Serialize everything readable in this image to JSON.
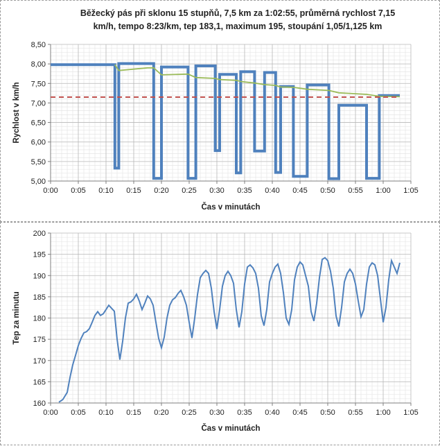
{
  "chart_data": [
    {
      "type": "line",
      "title_lines": [
        "Běžecký pás při sklonu 15 stupňů, 7,5 km za 1:02:55, průměrná rychlost 7,15",
        "km/h, tempo 8:23/km, tep 183,1, maximum 195, stoupání 1,05/1,125 km"
      ],
      "xlabel": "Čas v minutách",
      "ylabel": "Rychlost v km/h",
      "xlim": [
        0,
        65
      ],
      "ylim": [
        5.0,
        8.5
      ],
      "x_ticks": [
        "0:00",
        "0:05",
        "0:10",
        "0:15",
        "0:20",
        "0:25",
        "0:30",
        "0:35",
        "0:40",
        "0:45",
        "0:50",
        "0:55",
        "1:00",
        "1:05"
      ],
      "y_ticks": [
        "5,00",
        "5,50",
        "6,00",
        "6,50",
        "7,00",
        "7,50",
        "8,00",
        "8,50"
      ],
      "grid": true,
      "series": [
        {
          "color": "#4f81bd",
          "style": "step",
          "x": [
            0,
            11.6,
            11.6,
            12.3,
            12.3,
            18.6,
            18.6,
            20.0,
            20.0,
            24.8,
            24.8,
            26.2,
            26.2,
            29.7,
            29.7,
            30.5,
            30.5,
            33.5,
            33.5,
            34.3,
            34.3,
            36.8,
            36.8,
            38.6,
            38.6,
            40.6,
            40.6,
            41.5,
            41.5,
            43.8,
            43.8,
            46.3,
            46.3,
            50.2,
            50.2,
            52.0,
            52.0,
            57.0,
            57.0,
            59.3,
            59.3,
            63.0
          ],
          "y": [
            7.98,
            7.98,
            5.33,
            5.33,
            8.01,
            8.01,
            5.07,
            5.07,
            7.92,
            7.92,
            5.07,
            5.07,
            7.95,
            7.95,
            5.78,
            5.78,
            7.73,
            7.73,
            5.21,
            5.21,
            7.8,
            7.8,
            5.77,
            5.77,
            7.78,
            7.78,
            5.22,
            5.22,
            7.42,
            7.42,
            5.12,
            5.12,
            7.46,
            7.46,
            5.06,
            5.06,
            6.94,
            6.94,
            5.07,
            5.07,
            7.19,
            7.19
          ]
        },
        {
          "color": "#9bbb59",
          "style": "line",
          "x": [
            11.6,
            12.3,
            17.5,
            18.6,
            20.0,
            24.8,
            26.2,
            29.7,
            30.5,
            33.5,
            34.3,
            36.8,
            38.6,
            40.6,
            41.5,
            43.8,
            46.3,
            50.2,
            52.0,
            57.0,
            59.3,
            63.0
          ],
          "y": [
            7.98,
            7.83,
            7.9,
            7.9,
            7.72,
            7.74,
            7.65,
            7.63,
            7.6,
            7.58,
            7.55,
            7.51,
            7.47,
            7.45,
            7.41,
            7.4,
            7.35,
            7.32,
            7.26,
            7.22,
            7.17,
            7.16
          ]
        },
        {
          "color": "#c0504d",
          "style": "dashed",
          "x": [
            0,
            63
          ],
          "y": [
            7.15,
            7.15
          ]
        }
      ]
    },
    {
      "type": "line",
      "xlabel": "Čas v minutách",
      "ylabel": "Tep za minutu",
      "xlim": [
        0,
        65
      ],
      "ylim": [
        160,
        200
      ],
      "x_ticks": [
        "0:00",
        "0:05",
        "0:10",
        "0:15",
        "0:20",
        "0:25",
        "0:30",
        "0:35",
        "0:40",
        "0:45",
        "0:50",
        "0:55",
        "1:00",
        "1:05"
      ],
      "y_ticks": [
        "160",
        "165",
        "170",
        "175",
        "180",
        "185",
        "190",
        "195",
        "200"
      ],
      "grid": true,
      "series": [
        {
          "color": "#4f81bd",
          "x": [
            1.5,
            2.2,
            3.0,
            3.5,
            4.0,
            4.5,
            5.0,
            5.5,
            6.0,
            6.5,
            7.0,
            7.5,
            8.0,
            8.5,
            9.0,
            9.5,
            10.0,
            10.5,
            11.0,
            11.5,
            12.0,
            12.5,
            13.0,
            13.5,
            14.0,
            14.5,
            15.0,
            15.5,
            16.0,
            16.5,
            17.0,
            17.5,
            18.0,
            18.5,
            19.0,
            19.5,
            20.0,
            20.5,
            21.0,
            21.5,
            22.0,
            22.5,
            23.0,
            23.5,
            24.0,
            24.5,
            25.0,
            25.5,
            26.0,
            26.5,
            27.0,
            27.5,
            28.0,
            28.5,
            29.0,
            29.5,
            30.0,
            30.5,
            31.0,
            31.5,
            32.0,
            32.5,
            33.0,
            33.5,
            34.0,
            34.5,
            35.0,
            35.5,
            36.0,
            36.5,
            37.0,
            37.5,
            38.0,
            38.5,
            39.0,
            39.5,
            40.0,
            40.5,
            41.0,
            41.5,
            42.0,
            42.5,
            43.0,
            43.5,
            44.0,
            44.5,
            45.0,
            45.5,
            46.0,
            46.5,
            47.0,
            47.5,
            48.0,
            48.5,
            49.0,
            49.5,
            50.0,
            50.5,
            51.0,
            51.5,
            52.0,
            52.5,
            53.0,
            53.5,
            54.0,
            54.5,
            55.0,
            55.5,
            56.0,
            56.5,
            57.0,
            57.5,
            58.0,
            58.5,
            59.0,
            59.5,
            60.0,
            60.5,
            61.0,
            61.5,
            62.0,
            62.5,
            63.0
          ],
          "y": [
            160.2,
            160.8,
            162.5,
            166.0,
            169.0,
            171.2,
            173.5,
            175.2,
            176.5,
            176.8,
            177.5,
            179.0,
            180.6,
            181.5,
            180.6,
            181.0,
            182.0,
            183.0,
            182.3,
            181.6,
            175.0,
            170.2,
            174.5,
            180.0,
            183.5,
            183.8,
            184.5,
            185.6,
            184.0,
            182.0,
            183.5,
            185.2,
            184.5,
            183.0,
            179.0,
            175.2,
            173.0,
            175.5,
            180.0,
            183.0,
            184.3,
            184.8,
            185.8,
            186.5,
            185.0,
            183.0,
            179.0,
            175.3,
            180.0,
            185.5,
            189.5,
            190.5,
            191.2,
            190.5,
            187.0,
            181.5,
            177.4,
            182.0,
            187.5,
            190.0,
            191.0,
            190.0,
            188.2,
            182.0,
            177.8,
            181.5,
            188.0,
            192.0,
            192.5,
            191.8,
            190.5,
            187.0,
            180.5,
            178.2,
            182.0,
            188.5,
            190.5,
            192.0,
            192.7,
            190.5,
            186.0,
            180.0,
            178.5,
            182.0,
            189.0,
            192.0,
            193.2,
            192.5,
            190.0,
            187.5,
            181.5,
            179.3,
            183.5,
            189.5,
            193.8,
            194.2,
            193.5,
            191.0,
            187.0,
            180.5,
            178.0,
            182.5,
            188.5,
            190.5,
            191.5,
            190.5,
            188.0,
            184.0,
            180.3,
            182.0,
            188.0,
            192.0,
            193.0,
            192.5,
            190.0,
            184.5,
            179.0,
            182.5,
            189.0,
            193.5,
            192.0,
            190.5,
            193.0
          ]
        }
      ]
    }
  ]
}
